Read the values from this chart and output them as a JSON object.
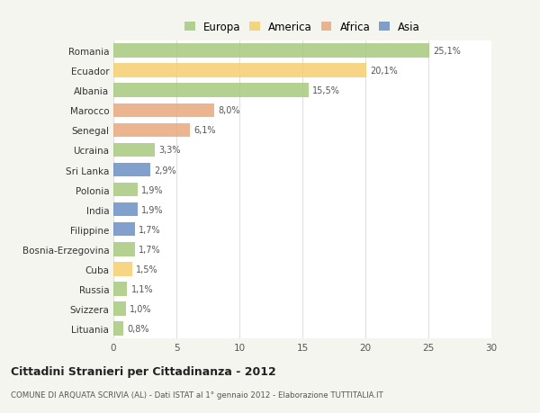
{
  "countries": [
    "Romania",
    "Ecuador",
    "Albania",
    "Marocco",
    "Senegal",
    "Ucraina",
    "Sri Lanka",
    "Polonia",
    "India",
    "Filippine",
    "Bosnia-Erzegovina",
    "Cuba",
    "Russia",
    "Svizzera",
    "Lituania"
  ],
  "values": [
    25.1,
    20.1,
    15.5,
    8.0,
    6.1,
    3.3,
    2.9,
    1.9,
    1.9,
    1.7,
    1.7,
    1.5,
    1.1,
    1.0,
    0.8
  ],
  "labels": [
    "25,1%",
    "20,1%",
    "15,5%",
    "8,0%",
    "6,1%",
    "3,3%",
    "2,9%",
    "1,9%",
    "1,9%",
    "1,7%",
    "1,7%",
    "1,5%",
    "1,1%",
    "1,0%",
    "0,8%"
  ],
  "continents": [
    "Europa",
    "America",
    "Europa",
    "Africa",
    "Africa",
    "Europa",
    "Asia",
    "Europa",
    "Asia",
    "Asia",
    "Europa",
    "America",
    "Europa",
    "Europa",
    "Europa"
  ],
  "continent_colors": {
    "Europa": "#a8c97f",
    "America": "#f5cf6e",
    "Africa": "#e8a87c",
    "Asia": "#6b8fc4"
  },
  "legend_items": [
    "Europa",
    "America",
    "Africa",
    "Asia"
  ],
  "legend_colors": [
    "#a8c97f",
    "#f5cf6e",
    "#e8a87c",
    "#6b8fc4"
  ],
  "xlim": [
    0,
    30
  ],
  "xticks": [
    0,
    5,
    10,
    15,
    20,
    25,
    30
  ],
  "title": "Cittadini Stranieri per Cittadinanza - 2012",
  "subtitle": "COMUNE DI ARQUATA SCRIVIA (AL) - Dati ISTAT al 1° gennaio 2012 - Elaborazione TUTTITALIA.IT",
  "background_color": "#f5f5f0",
  "plot_background": "#ffffff",
  "grid_color": "#dddddd",
  "bar_height": 0.7
}
